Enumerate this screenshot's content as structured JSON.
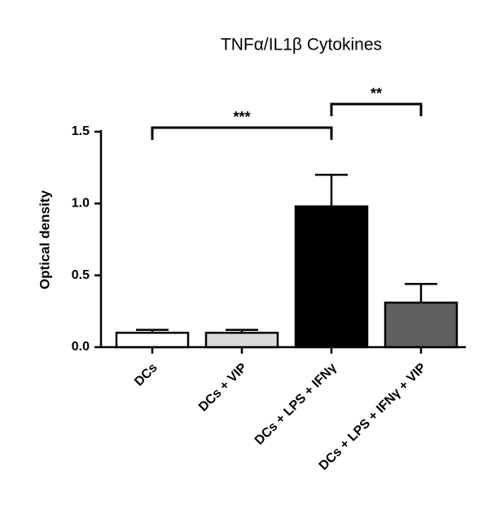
{
  "chart_data": {
    "type": "bar",
    "title": "TNFα/IL1β Cytokines",
    "y_label": "Optical density",
    "categories": [
      "DCs",
      "DCs + VIP",
      "DCs + LPS +  IFNγ",
      "DCs + LPS + IFNγ + VIP"
    ],
    "values": [
      0.1,
      0.1,
      0.98,
      0.31
    ],
    "errors": [
      0.02,
      0.02,
      0.22,
      0.13
    ],
    "colors": [
      "#ffffff",
      "#d9d9d9",
      "#000000",
      "#606060"
    ],
    "ylim": [
      0,
      1.5
    ],
    "yticks": [
      {
        "value": 0,
        "label": "0.0"
      },
      {
        "value": 0.5,
        "label": "0.5"
      },
      {
        "value": 1,
        "label": "1.0"
      },
      {
        "value": 1.5,
        "label": "1.5"
      }
    ],
    "brackets": [
      {
        "label": "***",
        "from": 0,
        "to": 2
      },
      {
        "label": "**",
        "from": 2,
        "to": 3
      }
    ]
  }
}
